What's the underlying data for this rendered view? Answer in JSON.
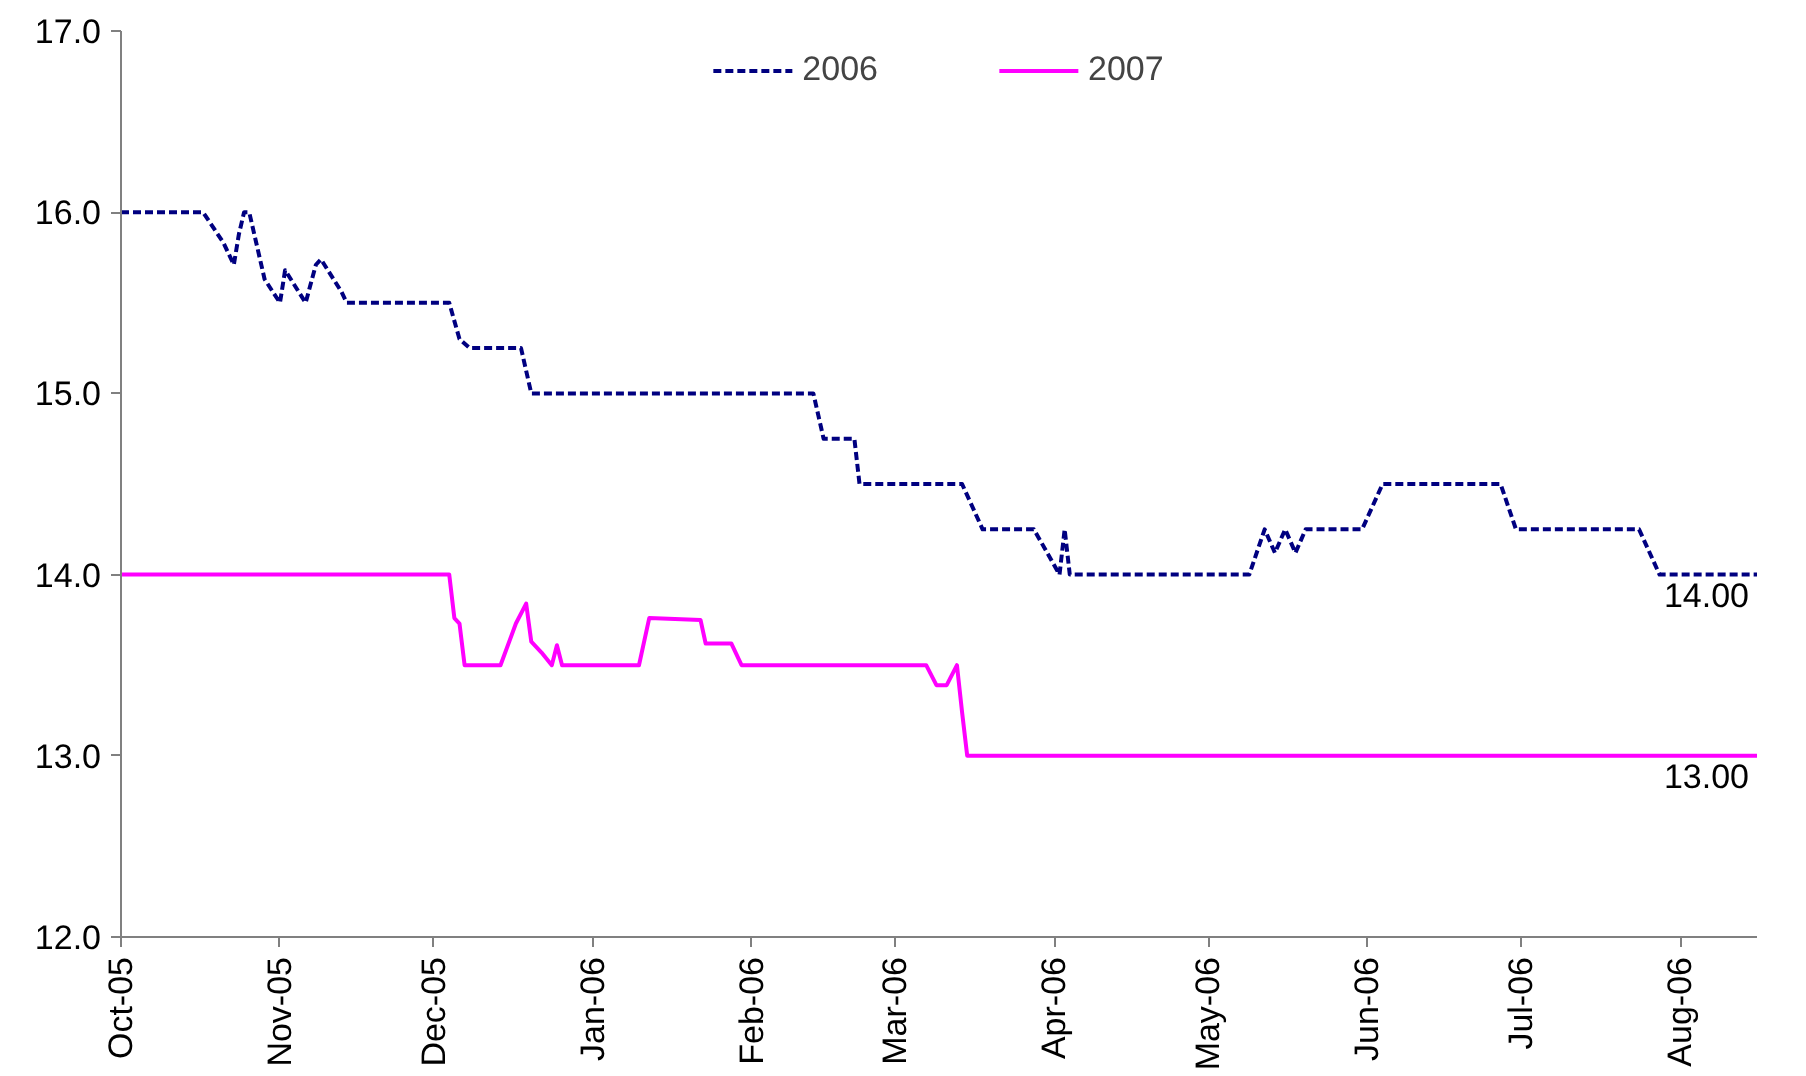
{
  "chart_data": {
    "type": "line",
    "xlim": [
      "2005-10-01",
      "2006-08-16"
    ],
    "xticks": [
      {
        "value": "2005-10-01",
        "label": "Oct-05"
      },
      {
        "value": "2005-11-01",
        "label": "Nov-05"
      },
      {
        "value": "2005-12-01",
        "label": "Dec-05"
      },
      {
        "value": "2006-01-01",
        "label": "Jan-06"
      },
      {
        "value": "2006-02-01",
        "label": "Feb-06"
      },
      {
        "value": "2006-03-01",
        "label": "Mar-06"
      },
      {
        "value": "2006-04-01",
        "label": "Apr-06"
      },
      {
        "value": "2006-05-01",
        "label": "May-06"
      },
      {
        "value": "2006-06-01",
        "label": "Jun-06"
      },
      {
        "value": "2006-07-01",
        "label": "Jul-06"
      },
      {
        "value": "2006-08-01",
        "label": "Aug-06"
      }
    ],
    "ylim": [
      12,
      17
    ],
    "yticks": [
      {
        "value": 12,
        "label": "12.0"
      },
      {
        "value": 13,
        "label": "13.0"
      },
      {
        "value": 14,
        "label": "14.0"
      },
      {
        "value": 15,
        "label": "15.0"
      },
      {
        "value": 16,
        "label": "16.0"
      },
      {
        "value": 17,
        "label": "17.0"
      }
    ],
    "grid": false,
    "legend": "top",
    "series": [
      {
        "name": "2006",
        "color": "#000080",
        "line_style": "dashed",
        "x": [
          "2005-10-01",
          "2005-10-17",
          "2005-10-21",
          "2005-10-23",
          "2005-10-24",
          "2005-10-25",
          "2005-10-26",
          "2005-10-29",
          "2005-11-01",
          "2005-11-02",
          "2005-11-06",
          "2005-11-08",
          "2005-11-09",
          "2005-11-13",
          "2005-11-14",
          "2005-12-04",
          "2005-12-06",
          "2005-12-08",
          "2005-12-18",
          "2005-12-20",
          "2006-02-13",
          "2006-02-15",
          "2006-02-21",
          "2006-02-22",
          "2006-03-14",
          "2006-03-18",
          "2006-03-28",
          "2006-04-02",
          "2006-04-03",
          "2006-04-04",
          "2006-05-09",
          "2006-05-12",
          "2006-05-14",
          "2006-05-16",
          "2006-05-18",
          "2006-05-20",
          "2006-05-31",
          "2006-06-04",
          "2006-06-27",
          "2006-06-30",
          "2006-07-24",
          "2006-07-28",
          "2006-08-16"
        ],
        "values": [
          16.0,
          16.0,
          15.83,
          15.71,
          15.88,
          16.0,
          16.0,
          15.63,
          15.5,
          15.68,
          15.5,
          15.71,
          15.74,
          15.56,
          15.5,
          15.5,
          15.3,
          15.25,
          15.25,
          15.0,
          15.0,
          14.75,
          14.75,
          14.5,
          14.5,
          14.25,
          14.25,
          14.0,
          14.25,
          14.0,
          14.0,
          14.25,
          14.12,
          14.25,
          14.12,
          14.25,
          14.25,
          14.5,
          14.5,
          14.25,
          14.25,
          14.0,
          14.0
        ]
      },
      {
        "name": "2007",
        "color": "#ff00ff",
        "line_style": "solid",
        "x": [
          "2005-10-01",
          "2005-12-04",
          "2005-12-05",
          "2005-12-06",
          "2005-12-07",
          "2005-12-14",
          "2005-12-17",
          "2005-12-19",
          "2005-12-20",
          "2005-12-22",
          "2005-12-24",
          "2005-12-25",
          "2005-12-26",
          "2006-01-10",
          "2006-01-12",
          "2006-01-22",
          "2006-01-23",
          "2006-01-28",
          "2006-01-30",
          "2006-03-07",
          "2006-03-09",
          "2006-03-11",
          "2006-03-13",
          "2006-03-14",
          "2006-03-15",
          "2006-08-16"
        ],
        "values": [
          14.0,
          14.0,
          13.76,
          13.73,
          13.5,
          13.5,
          13.73,
          13.84,
          13.63,
          13.57,
          13.5,
          13.61,
          13.5,
          13.5,
          13.76,
          13.75,
          13.62,
          13.62,
          13.5,
          13.5,
          13.39,
          13.39,
          13.5,
          13.24,
          13.0,
          13.0
        ]
      }
    ],
    "annotations": [
      {
        "text": "14.00",
        "x": "2006-08-16",
        "y": 14.0
      },
      {
        "text": "13.00",
        "x": "2006-08-16",
        "y": 13.0
      }
    ]
  }
}
